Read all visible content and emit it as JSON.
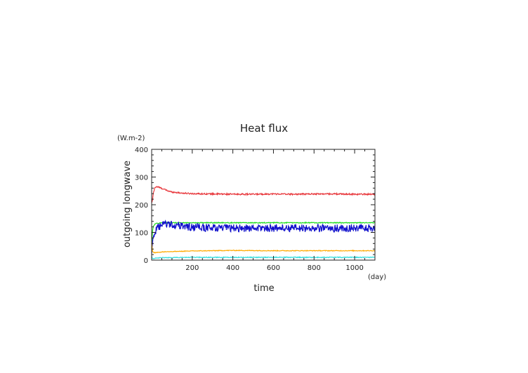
{
  "chart_data": {
    "type": "line",
    "title": "Heat flux",
    "ylabel": "outgoing longwave",
    "yunit": "(W.m-2)",
    "xlabel": "time",
    "xunit": "(day)",
    "xlim": [
      0,
      1100
    ],
    "ylim": [
      0,
      400
    ],
    "xticks": [
      200,
      400,
      600,
      800,
      1000
    ],
    "yticks": [
      0,
      100,
      200,
      300,
      400
    ],
    "grid": false,
    "series": [
      {
        "color": "#e8383d",
        "x": [
          0,
          3,
          8,
          15,
          25,
          40,
          60,
          80,
          100,
          150,
          200,
          300,
          400,
          500,
          600,
          700,
          800,
          900,
          1000,
          1100
        ],
        "values": [
          215,
          210,
          240,
          262,
          265,
          262,
          256,
          250,
          246,
          242,
          240,
          239,
          238,
          238,
          239,
          238,
          239,
          239,
          238,
          238
        ],
        "noise": 2.5
      },
      {
        "color": "#22dd22",
        "x": [
          0,
          2,
          5,
          10,
          20,
          50,
          100,
          200,
          400,
          600,
          800,
          1000,
          1100
        ],
        "values": [
          60,
          80,
          110,
          125,
          132,
          135,
          135,
          135,
          135,
          135,
          135,
          135,
          135
        ],
        "noise": 1.5
      },
      {
        "color": "#1111cc",
        "x": [
          0,
          3,
          8,
          15,
          30,
          50,
          70,
          100,
          200,
          400,
          600,
          800,
          1000,
          1100
        ],
        "values": [
          25,
          55,
          85,
          100,
          115,
          125,
          132,
          128,
          118,
          115,
          116,
          115,
          115,
          115
        ],
        "noise": 14
      },
      {
        "color": "#ffaa00",
        "x": [
          0,
          3,
          8,
          15,
          30,
          60,
          100,
          200,
          400,
          600,
          800,
          1000,
          1100
        ],
        "values": [
          70,
          35,
          28,
          27,
          28,
          30,
          31,
          33,
          35,
          34,
          34,
          34,
          34
        ],
        "noise": 1.2
      },
      {
        "color": "#33dddd",
        "x": [
          0,
          3,
          8,
          15,
          30,
          60,
          100,
          200,
          400,
          600,
          800,
          1000,
          1100
        ],
        "values": [
          15,
          6,
          5,
          6,
          8,
          9,
          9,
          10,
          10,
          10,
          10,
          10,
          10
        ],
        "noise": 1.5
      }
    ]
  }
}
